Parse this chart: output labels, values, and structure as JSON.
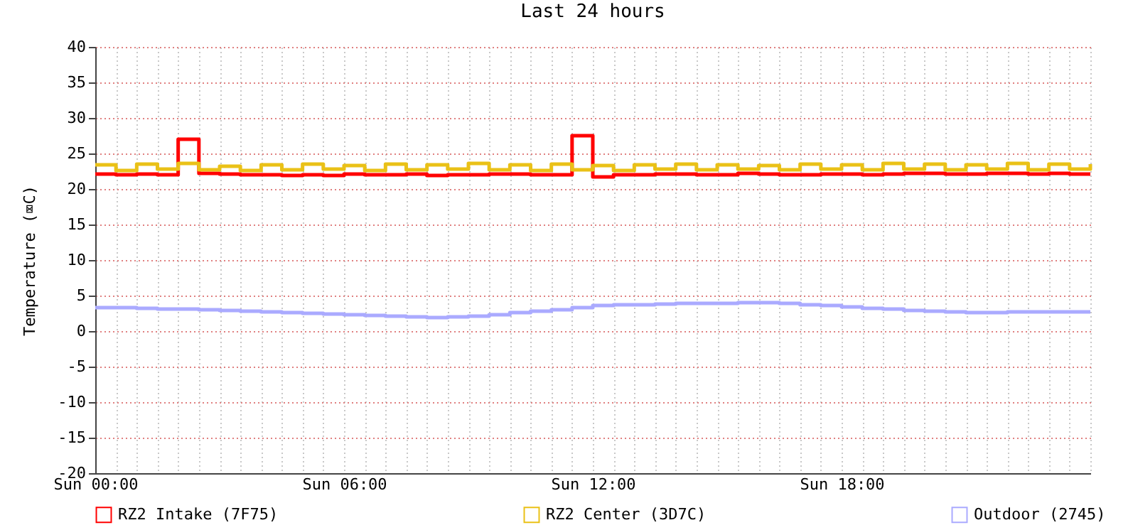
{
  "chart_data": {
    "type": "step",
    "title": "Last 24 hours",
    "ylabel": "Temperature (⌧C)",
    "categories": [
      "Sun 00:00",
      null,
      null,
      null,
      null,
      null,
      null,
      null,
      null,
      null,
      null,
      null,
      "Sun 06:00",
      null,
      null,
      null,
      null,
      null,
      null,
      null,
      null,
      null,
      null,
      null,
      "Sun 12:00",
      null,
      null,
      null,
      null,
      null,
      null,
      null,
      null,
      null,
      null,
      null,
      "Sun 18:00",
      null,
      null,
      null,
      null,
      null,
      null,
      null,
      null,
      null,
      null,
      null,
      null
    ],
    "ylim": [
      -20,
      40
    ],
    "yticks": [
      -20,
      -15,
      -10,
      -5,
      0,
      5,
      10,
      15,
      20,
      25,
      30,
      35,
      40
    ],
    "grid": true,
    "legend": "bottom",
    "line_style": "solid",
    "marker": "none",
    "series": [
      {
        "name": "RZ2 Intake (7F75)",
        "color": "#ff0000",
        "values": [
          22.1,
          22.0,
          22.1,
          22.0,
          27.0,
          22.2,
          22.1,
          22.0,
          22.0,
          21.9,
          22.0,
          21.9,
          22.1,
          22.0,
          22.0,
          22.1,
          21.9,
          22.0,
          22.0,
          22.1,
          22.1,
          22.0,
          22.0,
          27.5,
          21.7,
          22.0,
          22.0,
          22.1,
          22.1,
          22.0,
          22.0,
          22.2,
          22.1,
          22.0,
          22.0,
          22.1,
          22.1,
          22.0,
          22.1,
          22.2,
          22.2,
          22.1,
          22.1,
          22.2,
          22.2,
          22.1,
          22.2,
          22.1,
          22.1
        ]
      },
      {
        "name": "RZ2 Center (3D7C)",
        "color": "#eac117",
        "values": [
          23.4,
          22.6,
          23.5,
          22.8,
          23.6,
          22.7,
          23.2,
          22.6,
          23.4,
          22.7,
          23.5,
          22.8,
          23.3,
          22.6,
          23.5,
          22.7,
          23.4,
          22.8,
          23.6,
          22.7,
          23.4,
          22.6,
          23.5,
          22.7,
          23.3,
          22.6,
          23.4,
          22.8,
          23.5,
          22.7,
          23.4,
          22.8,
          23.3,
          22.7,
          23.5,
          22.8,
          23.4,
          22.7,
          23.6,
          22.8,
          23.5,
          22.7,
          23.4,
          22.8,
          23.6,
          22.7,
          23.5,
          22.8,
          23.5
        ]
      },
      {
        "name": "Outdoor (2745)",
        "color": "#aaaaff",
        "values": [
          3.3,
          3.3,
          3.2,
          3.1,
          3.1,
          3.0,
          2.9,
          2.8,
          2.7,
          2.6,
          2.5,
          2.4,
          2.3,
          2.2,
          2.1,
          2.0,
          1.9,
          2.0,
          2.1,
          2.3,
          2.6,
          2.8,
          3.0,
          3.3,
          3.6,
          3.7,
          3.7,
          3.8,
          3.9,
          3.9,
          3.9,
          4.0,
          4.0,
          3.9,
          3.7,
          3.6,
          3.4,
          3.2,
          3.1,
          2.9,
          2.8,
          2.7,
          2.6,
          2.6,
          2.7,
          2.7,
          2.7,
          2.7,
          2.7
        ]
      }
    ]
  }
}
